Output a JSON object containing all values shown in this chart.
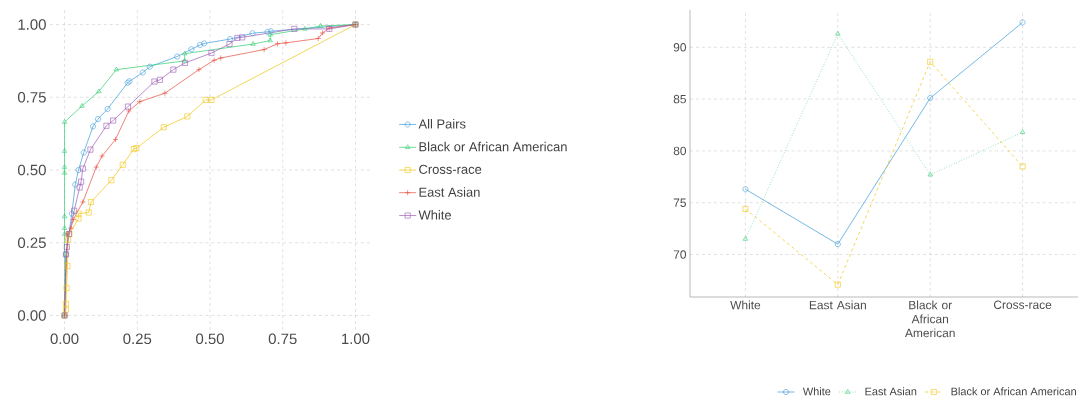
{
  "chart_data": [
    {
      "type": "line",
      "xlim": [
        -0.05,
        1.05
      ],
      "ylim": [
        -0.05,
        1.05
      ],
      "xticks": [
        {
          "value": 0,
          "label": "0.00"
        },
        {
          "value": 0.25,
          "label": "0.25"
        },
        {
          "value": 0.5,
          "label": "0.50"
        },
        {
          "value": 0.75,
          "label": "0.75"
        },
        {
          "value": 1,
          "label": "1.00"
        }
      ],
      "yticks": [
        {
          "value": 0,
          "label": "0.00"
        },
        {
          "value": 0.25,
          "label": "0.25"
        },
        {
          "value": 0.5,
          "label": "0.50"
        },
        {
          "value": 0.75,
          "label": "0.75"
        },
        {
          "value": 1,
          "label": "1.00"
        }
      ],
      "grid": true,
      "legend": "right",
      "line_style": "solid",
      "series": [
        {
          "name": "All Pairs",
          "color": "#3a9ad9",
          "marker": "circle",
          "x": [
            0,
            0.005,
            0.025,
            0.037,
            0.048,
            0.066,
            0.098,
            0.115,
            0.148,
            0.217,
            0.223,
            0.269,
            0.293,
            0.387,
            0.436,
            0.466,
            0.48,
            0.569,
            0.646,
            0.698,
            0.709,
            1
          ],
          "values": [
            0,
            0.21,
            0.35,
            0.45,
            0.5,
            0.56,
            0.65,
            0.675,
            0.71,
            0.8,
            0.805,
            0.835,
            0.855,
            0.89,
            0.915,
            0.93,
            0.935,
            0.95,
            0.97,
            0.975,
            0.977,
            1
          ]
        },
        {
          "name": "Black or African American",
          "color": "#2ecc71",
          "marker": "triangle",
          "x": [
            0,
            0,
            0,
            0,
            0,
            0,
            0,
            0,
            0.06,
            0.118,
            0.178,
            0.413,
            0.413,
            0.648,
            0.707,
            0.707,
            0.826,
            0.88,
            1
          ],
          "values": [
            0,
            0.28,
            0.3,
            0.34,
            0.49,
            0.51,
            0.565,
            0.665,
            0.72,
            0.77,
            0.845,
            0.875,
            0.9,
            0.933,
            0.945,
            0.965,
            0.985,
            0.995,
            1
          ]
        },
        {
          "name": "Cross-race",
          "color": "#f1c40f",
          "marker": "square",
          "x": [
            0,
            0.005,
            0.005,
            0.007,
            0.01,
            0.012,
            0.017,
            0.048,
            0.048,
            0.083,
            0.091,
            0.161,
            0.2,
            0.238,
            0.247,
            0.341,
            0.422,
            0.485,
            0.505,
            1
          ],
          "values": [
            0,
            0.02,
            0.04,
            0.095,
            0.17,
            0.26,
            0.28,
            0.333,
            0.35,
            0.354,
            0.39,
            0.465,
            0.518,
            0.572,
            0.575,
            0.647,
            0.684,
            0.741,
            0.741,
            1
          ]
        },
        {
          "name": "East Asian",
          "color": "#e74c3c",
          "marker": "cross",
          "x": [
            0,
            0.01,
            0.022,
            0.03,
            0.063,
            0.109,
            0.129,
            0.175,
            0.221,
            0.259,
            0.345,
            0.462,
            0.514,
            0.537,
            0.686,
            0.732,
            0.761,
            0.872,
            0.887,
            0.91,
            1
          ],
          "values": [
            0,
            0.28,
            0.3,
            0.33,
            0.39,
            0.51,
            0.548,
            0.605,
            0.703,
            0.735,
            0.764,
            0.845,
            0.877,
            0.885,
            0.914,
            0.934,
            0.937,
            0.952,
            0.971,
            0.988,
            1
          ]
        },
        {
          "name": "White",
          "color": "#9b59b6",
          "marker": "square",
          "x": [
            0,
            0.005,
            0.008,
            0.015,
            0.033,
            0.052,
            0.057,
            0.063,
            0.089,
            0.144,
            0.167,
            0.218,
            0.309,
            0.328,
            0.374,
            0.414,
            0.505,
            0.567,
            0.594,
            0.611,
            0.79,
            0.91,
            1
          ],
          "values": [
            0,
            0.21,
            0.235,
            0.28,
            0.36,
            0.44,
            0.46,
            0.505,
            0.57,
            0.652,
            0.67,
            0.718,
            0.804,
            0.81,
            0.845,
            0.868,
            0.902,
            0.933,
            0.954,
            0.956,
            0.985,
            0.985,
            1
          ]
        }
      ]
    },
    {
      "type": "line",
      "categories": [
        "White",
        "East Asian",
        "Black or African American",
        "Cross-race"
      ],
      "ylim": [
        65.9,
        93.6
      ],
      "yticks": [
        70,
        75,
        80,
        85,
        90
      ],
      "grid": true,
      "legend": "bottom",
      "series": [
        {
          "name": "White",
          "color": "#3a9ad9",
          "marker": "circle",
          "line_style": "solid",
          "values": [
            76.3,
            71.0,
            85.1,
            92.4
          ]
        },
        {
          "name": "East Asian",
          "color": "#2ecc71",
          "marker": "triangle",
          "line_style": "dotted",
          "values": [
            71.5,
            91.3,
            77.7,
            81.8
          ]
        },
        {
          "name": "Black or African American",
          "color": "#f1c40f",
          "marker": "square",
          "line_style": "dashed",
          "values": [
            74.4,
            67.1,
            88.6,
            78.5
          ]
        }
      ]
    }
  ]
}
